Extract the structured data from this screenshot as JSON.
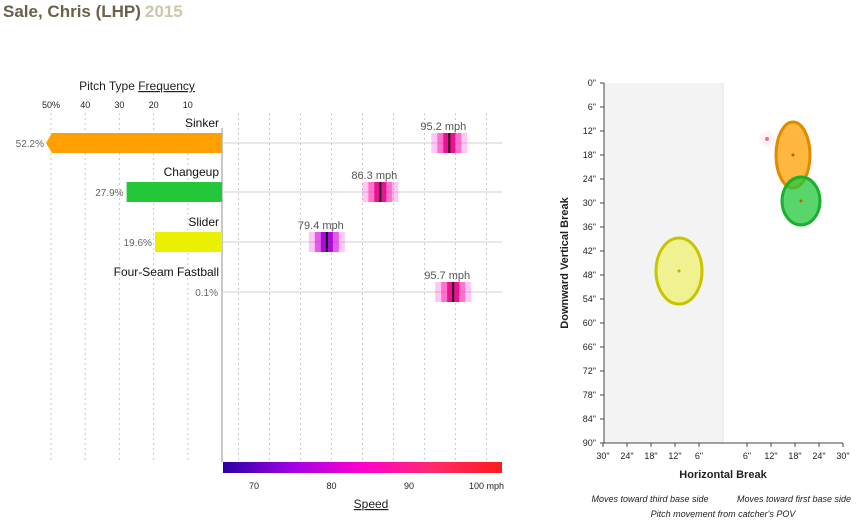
{
  "header": {
    "player": "Sale, Chris (LHP)",
    "year": "2015"
  },
  "frequency_panel": {
    "title_prefix": "Pitch Type ",
    "title_underlined": "Frequency",
    "tick_labels": [
      "50%",
      "40",
      "30",
      "20",
      "10"
    ]
  },
  "speed_panel": {
    "tick_labels": [
      "70",
      "80",
      "90",
      "100 mph"
    ],
    "axis_title": "Speed",
    "speed_unit": "mph",
    "gradient_colors": [
      "#2a00a0",
      "#a000e6",
      "#ff00cc",
      "#ff2a6e",
      "#ff1a1a"
    ]
  },
  "movement_panel": {
    "xlabel": "Horizontal Break",
    "ylabel": "Downward Vertical Break",
    "y_tick_labels": [
      "0\"",
      "6\"",
      "12\"",
      "18\"",
      "24\"",
      "30\"",
      "36\"",
      "42\"",
      "48\"",
      "54\"",
      "60\"",
      "66\"",
      "72\"",
      "78\"",
      "84\"",
      "90\""
    ],
    "x_tick_labels": [
      "30\"",
      "24\"",
      "18\"",
      "12\"",
      "6\"",
      "6\"",
      "12\"",
      "18\"",
      "24\"",
      "30\""
    ],
    "note_left": "Moves toward third base side",
    "note_right": "Moves toward first base side",
    "note_bottom": "Pitch movement from catcher's POV"
  },
  "chart_data": [
    {
      "type": "bar",
      "title": "Pitch Type Frequency",
      "categories": [
        "Sinker",
        "Changeup",
        "Slider",
        "Four-Seam Fastball"
      ],
      "values": [
        52.2,
        27.9,
        19.6,
        0.1
      ],
      "value_labels": [
        "52.2%",
        "27.9%",
        "19.6%",
        "0.1%"
      ],
      "colors": [
        "#ff9f00",
        "#22c73a",
        "#ebf000",
        "#ff9f00"
      ],
      "xlim": [
        0,
        50
      ]
    },
    {
      "type": "scatter",
      "xlabel": "Speed",
      "categories": [
        "Sinker",
        "Changeup",
        "Slider",
        "Four-Seam Fastball"
      ],
      "values": [
        95.2,
        86.3,
        79.4,
        95.7
      ],
      "value_labels": [
        "95.2 mph",
        "86.3 mph",
        "79.4 mph",
        "95.7 mph"
      ],
      "xlim": [
        66,
        102
      ]
    },
    {
      "type": "scatter",
      "xlabel": "Horizontal Break",
      "ylabel": "Downward Vertical Break",
      "xlim": [
        -30,
        30
      ],
      "ylim": [
        0,
        90
      ],
      "series": [
        {
          "category": "Sinker",
          "x": 17.5,
          "y": 18,
          "color": "#ff9f00"
        },
        {
          "category": "Changeup",
          "x": 19.5,
          "y": 29.5,
          "color": "#22c73a"
        },
        {
          "category": "Slider",
          "x": -11,
          "y": 47,
          "color": "#ebf000"
        },
        {
          "category": "Four-Seam Fastball",
          "x": 11,
          "y": 14,
          "color": "#ff9f00"
        }
      ]
    }
  ]
}
